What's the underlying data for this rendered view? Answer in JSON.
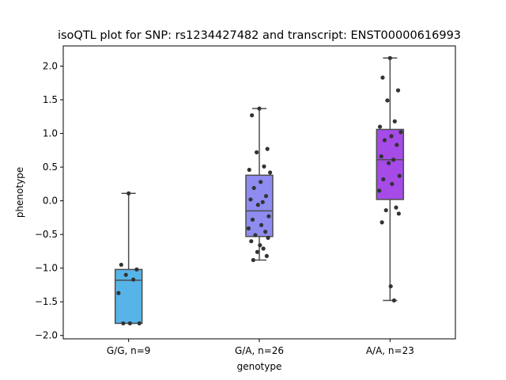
{
  "chart_data": {
    "type": "box",
    "title": "isoQTL plot for SNP: rs1234427482 and transcript: ENST00000616993",
    "xlabel": "genotype",
    "ylabel": "phenotype",
    "ylim": [
      -2.05,
      2.3
    ],
    "yticks": [
      -2.0,
      -1.5,
      -1.0,
      -0.5,
      0.0,
      0.5,
      1.0,
      1.5,
      2.0
    ],
    "ytick_labels": [
      "−2.0",
      "−1.5",
      "−1.0",
      "−0.5",
      "0.0",
      "0.5",
      "1.0",
      "1.5",
      "2.0"
    ],
    "grid": false,
    "categories": [
      "G/G, n=9",
      "G/A, n=26",
      "A/A, n=23"
    ],
    "boxes": [
      {
        "category": "G/G, n=9",
        "color": "#56b4e9",
        "whisker_low": -1.82,
        "q1": -1.82,
        "median": -1.18,
        "q3": -1.02,
        "whisker_high": 0.11,
        "points": [
          0.11,
          -0.95,
          -1.02,
          -1.1,
          -1.17,
          -1.37,
          -1.82,
          -1.82,
          -1.82
        ]
      },
      {
        "category": "G/A, n=26",
        "color": "#8e8cf0",
        "whisker_low": -0.88,
        "q1": -0.53,
        "median": -0.15,
        "q3": 0.38,
        "whisker_high": 1.37,
        "points": [
          1.37,
          1.27,
          0.77,
          0.72,
          0.51,
          0.46,
          0.42,
          0.28,
          0.19,
          0.07,
          0.02,
          -0.02,
          -0.06,
          -0.23,
          -0.28,
          -0.36,
          -0.41,
          -0.46,
          -0.51,
          -0.55,
          -0.6,
          -0.66,
          -0.71,
          -0.76,
          -0.82,
          -0.88
        ]
      },
      {
        "category": "A/A, n=23",
        "color": "#a64ae8",
        "whisker_low": -1.48,
        "q1": 0.02,
        "median": 0.61,
        "q3": 1.06,
        "whisker_high": 2.12,
        "points": [
          2.12,
          1.83,
          1.64,
          1.49,
          1.18,
          1.1,
          1.02,
          0.96,
          0.9,
          0.83,
          0.66,
          0.61,
          0.56,
          0.37,
          0.32,
          0.25,
          0.15,
          -0.1,
          -0.14,
          -0.19,
          -0.32,
          -1.27,
          -1.48
        ]
      }
    ]
  }
}
